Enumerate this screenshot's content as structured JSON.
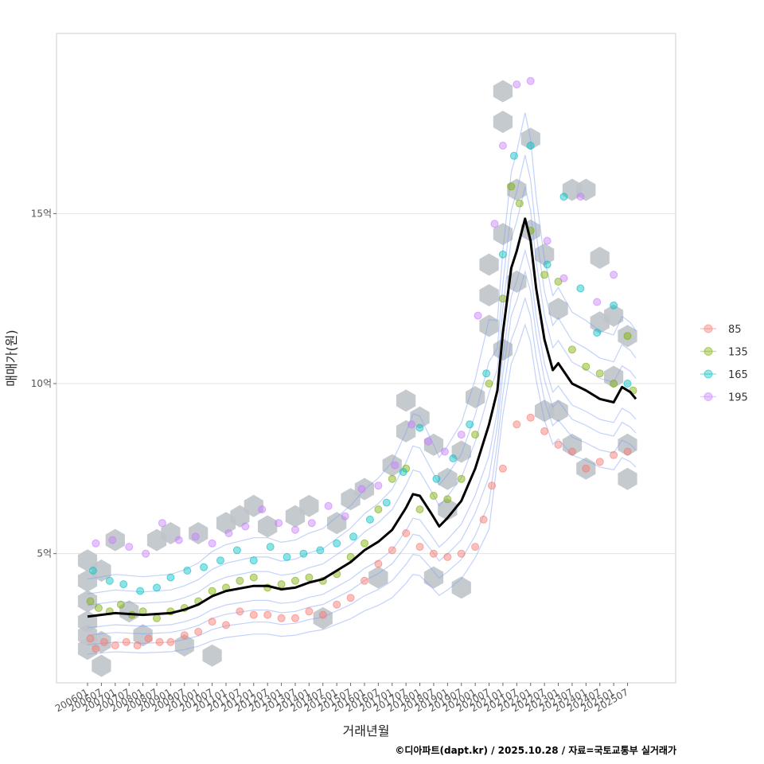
{
  "chart_data": {
    "type": "scatter",
    "xlabel": "거래년월",
    "ylabel": "매매가(원)",
    "caption": "©디아파트(dapt.kr) / 2025.10.28 / 자료=국토교통부 실거래가",
    "x_range": [
      "2006-01",
      "2025-10"
    ],
    "ylim": [
      1.2,
      20.3
    ],
    "y_ticks": [
      5,
      10,
      15
    ],
    "y_tick_labels": [
      "5억",
      "10억",
      "15억"
    ],
    "x_ticks": [
      "200601",
      "200607",
      "200701",
      "200707",
      "200801",
      "200807",
      "200901",
      "200907",
      "201001",
      "201007",
      "201101",
      "201107",
      "201201",
      "201207",
      "201301",
      "201307",
      "201401",
      "201407",
      "201501",
      "201507",
      "201601",
      "201607",
      "201701",
      "201707",
      "201801",
      "201807",
      "201901",
      "201907",
      "202001",
      "202007",
      "202101",
      "202107",
      "202201",
      "202207",
      "202301",
      "202307",
      "202401",
      "202407",
      "202501",
      "202507"
    ],
    "legend": {
      "entries": [
        "85",
        "135",
        "165",
        "195"
      ],
      "colors": [
        "#F8766D",
        "#7CAE00",
        "#00BFC4",
        "#C77CFF"
      ]
    },
    "series": [
      {
        "name": "85",
        "color": "#F8766D",
        "points": [
          [
            2006.1,
            2.5
          ],
          [
            2006.3,
            2.2
          ],
          [
            2006.6,
            2.4
          ],
          [
            2007.0,
            2.3
          ],
          [
            2007.4,
            2.4
          ],
          [
            2007.8,
            2.3
          ],
          [
            2008.2,
            2.5
          ],
          [
            2008.6,
            2.4
          ],
          [
            2009.0,
            2.4
          ],
          [
            2009.5,
            2.6
          ],
          [
            2010.0,
            2.7
          ],
          [
            2010.5,
            3.0
          ],
          [
            2011.0,
            2.9
          ],
          [
            2011.5,
            3.3
          ],
          [
            2012.0,
            3.2
          ],
          [
            2012.5,
            3.2
          ],
          [
            2013.0,
            3.1
          ],
          [
            2013.5,
            3.1
          ],
          [
            2014.0,
            3.3
          ],
          [
            2014.5,
            3.2
          ],
          [
            2015.0,
            3.5
          ],
          [
            2015.5,
            3.7
          ],
          [
            2016.0,
            4.2
          ],
          [
            2016.5,
            4.7
          ],
          [
            2017.0,
            5.1
          ],
          [
            2017.5,
            5.6
          ],
          [
            2018.0,
            5.2
          ],
          [
            2018.5,
            5.0
          ],
          [
            2019.0,
            4.9
          ],
          [
            2019.5,
            5.0
          ],
          [
            2020.0,
            5.2
          ],
          [
            2020.3,
            6.0
          ],
          [
            2020.6,
            7.0
          ],
          [
            2021.0,
            7.5
          ],
          [
            2021.5,
            8.8
          ],
          [
            2022.0,
            9.0
          ],
          [
            2022.5,
            8.6
          ],
          [
            2023.0,
            8.2
          ],
          [
            2023.5,
            8.0
          ],
          [
            2024.0,
            7.5
          ],
          [
            2024.5,
            7.7
          ],
          [
            2025.0,
            7.9
          ],
          [
            2025.5,
            8.0
          ]
        ]
      },
      {
        "name": "135",
        "color": "#7CAE00",
        "points": [
          [
            2006.1,
            3.6
          ],
          [
            2006.4,
            3.4
          ],
          [
            2006.8,
            3.3
          ],
          [
            2007.2,
            3.5
          ],
          [
            2007.6,
            3.2
          ],
          [
            2008.0,
            3.3
          ],
          [
            2008.5,
            3.1
          ],
          [
            2009.0,
            3.3
          ],
          [
            2009.5,
            3.4
          ],
          [
            2010.0,
            3.6
          ],
          [
            2010.5,
            3.9
          ],
          [
            2011.0,
            4.0
          ],
          [
            2011.5,
            4.2
          ],
          [
            2012.0,
            4.3
          ],
          [
            2012.5,
            4.0
          ],
          [
            2013.0,
            4.1
          ],
          [
            2013.5,
            4.2
          ],
          [
            2014.0,
            4.3
          ],
          [
            2014.5,
            4.2
          ],
          [
            2015.0,
            4.4
          ],
          [
            2015.5,
            4.9
          ],
          [
            2016.0,
            5.3
          ],
          [
            2016.5,
            6.3
          ],
          [
            2017.0,
            7.2
          ],
          [
            2017.5,
            7.5
          ],
          [
            2018.0,
            6.3
          ],
          [
            2018.5,
            6.7
          ],
          [
            2019.0,
            6.6
          ],
          [
            2019.5,
            7.2
          ],
          [
            2020.0,
            8.5
          ],
          [
            2020.5,
            10.0
          ],
          [
            2021.0,
            12.5
          ],
          [
            2021.3,
            15.8
          ],
          [
            2021.6,
            15.3
          ],
          [
            2022.0,
            14.5
          ],
          [
            2022.5,
            13.2
          ],
          [
            2023.0,
            13.0
          ],
          [
            2023.5,
            11.0
          ],
          [
            2024.0,
            10.5
          ],
          [
            2024.5,
            10.3
          ],
          [
            2025.0,
            10.0
          ],
          [
            2025.5,
            11.4
          ],
          [
            2025.7,
            9.8
          ]
        ]
      },
      {
        "name": "165",
        "color": "#00BFC4",
        "points": [
          [
            2006.2,
            4.5
          ],
          [
            2006.8,
            4.2
          ],
          [
            2007.3,
            4.1
          ],
          [
            2007.9,
            3.9
          ],
          [
            2008.5,
            4.0
          ],
          [
            2009.0,
            4.3
          ],
          [
            2009.6,
            4.5
          ],
          [
            2010.2,
            4.6
          ],
          [
            2010.8,
            4.8
          ],
          [
            2011.4,
            5.1
          ],
          [
            2012.0,
            4.8
          ],
          [
            2012.6,
            5.2
          ],
          [
            2013.2,
            4.9
          ],
          [
            2013.8,
            5.0
          ],
          [
            2014.4,
            5.1
          ],
          [
            2015.0,
            5.3
          ],
          [
            2015.6,
            5.5
          ],
          [
            2016.2,
            6.0
          ],
          [
            2016.8,
            6.5
          ],
          [
            2017.4,
            7.4
          ],
          [
            2018.0,
            8.7
          ],
          [
            2018.6,
            7.2
          ],
          [
            2019.2,
            7.8
          ],
          [
            2019.8,
            8.8
          ],
          [
            2020.4,
            10.3
          ],
          [
            2021.0,
            13.8
          ],
          [
            2021.4,
            16.7
          ],
          [
            2022.0,
            17.0
          ],
          [
            2022.6,
            13.5
          ],
          [
            2023.2,
            15.5
          ],
          [
            2023.8,
            12.8
          ],
          [
            2024.4,
            11.5
          ],
          [
            2025.0,
            12.3
          ],
          [
            2025.5,
            10.0
          ]
        ]
      },
      {
        "name": "195",
        "color": "#C77CFF",
        "points": [
          [
            2006.3,
            5.3
          ],
          [
            2006.9,
            5.4
          ],
          [
            2007.5,
            5.2
          ],
          [
            2008.1,
            5.0
          ],
          [
            2008.7,
            5.9
          ],
          [
            2009.3,
            5.4
          ],
          [
            2009.9,
            5.5
          ],
          [
            2010.5,
            5.3
          ],
          [
            2011.1,
            5.6
          ],
          [
            2011.7,
            5.8
          ],
          [
            2012.3,
            6.3
          ],
          [
            2012.9,
            5.9
          ],
          [
            2013.5,
            5.7
          ],
          [
            2014.1,
            5.9
          ],
          [
            2014.7,
            6.4
          ],
          [
            2015.3,
            6.1
          ],
          [
            2015.9,
            6.9
          ],
          [
            2016.5,
            7.0
          ],
          [
            2017.1,
            7.6
          ],
          [
            2017.7,
            8.8
          ],
          [
            2018.3,
            8.3
          ],
          [
            2018.9,
            8.0
          ],
          [
            2019.5,
            8.5
          ],
          [
            2020.1,
            12.0
          ],
          [
            2020.7,
            14.7
          ],
          [
            2021.0,
            17.0
          ],
          [
            2021.5,
            18.8
          ],
          [
            2022.0,
            18.9
          ],
          [
            2022.6,
            14.2
          ],
          [
            2023.2,
            13.1
          ],
          [
            2023.8,
            15.5
          ],
          [
            2024.4,
            12.4
          ],
          [
            2025.0,
            13.2
          ]
        ]
      }
    ],
    "median_line": [
      [
        2006.0,
        3.15
      ],
      [
        2007.0,
        3.25
      ],
      [
        2008.0,
        3.2
      ],
      [
        2009.0,
        3.25
      ],
      [
        2009.5,
        3.35
      ],
      [
        2010.0,
        3.5
      ],
      [
        2010.5,
        3.75
      ],
      [
        2011.0,
        3.9
      ],
      [
        2012.0,
        4.05
      ],
      [
        2012.5,
        4.05
      ],
      [
        2013.0,
        3.95
      ],
      [
        2013.5,
        4.0
      ],
      [
        2014.0,
        4.15
      ],
      [
        2014.5,
        4.25
      ],
      [
        2015.0,
        4.5
      ],
      [
        2015.5,
        4.75
      ],
      [
        2016.0,
        5.1
      ],
      [
        2016.5,
        5.35
      ],
      [
        2017.0,
        5.7
      ],
      [
        2017.5,
        6.35
      ],
      [
        2017.75,
        6.75
      ],
      [
        2018.0,
        6.7
      ],
      [
        2018.4,
        6.2
      ],
      [
        2018.7,
        5.8
      ],
      [
        2019.0,
        6.05
      ],
      [
        2019.5,
        6.55
      ],
      [
        2020.0,
        7.5
      ],
      [
        2020.5,
        8.8
      ],
      [
        2020.8,
        9.8
      ],
      [
        2021.0,
        11.5
      ],
      [
        2021.3,
        13.4
      ],
      [
        2021.5,
        13.9
      ],
      [
        2021.8,
        14.85
      ],
      [
        2022.0,
        14.2
      ],
      [
        2022.2,
        12.8
      ],
      [
        2022.5,
        11.3
      ],
      [
        2022.8,
        10.4
      ],
      [
        2023.0,
        10.6
      ],
      [
        2023.5,
        10.0
      ],
      [
        2024.0,
        9.8
      ],
      [
        2024.5,
        9.55
      ],
      [
        2025.0,
        9.45
      ],
      [
        2025.3,
        9.9
      ],
      [
        2025.6,
        9.75
      ],
      [
        2025.8,
        9.55
      ]
    ],
    "hex_bins": [
      [
        2006.0,
        2.2
      ],
      [
        2006.0,
        2.6
      ],
      [
        2006.0,
        3.0
      ],
      [
        2006.0,
        3.6
      ],
      [
        2006.0,
        4.2
      ],
      [
        2006.0,
        4.8
      ],
      [
        2006.5,
        1.7
      ],
      [
        2006.5,
        2.4
      ],
      [
        2006.5,
        4.5
      ],
      [
        2007.0,
        5.4
      ],
      [
        2007.5,
        3.3
      ],
      [
        2008.0,
        2.6
      ],
      [
        2008.5,
        5.4
      ],
      [
        2009.0,
        5.6
      ],
      [
        2009.5,
        2.3
      ],
      [
        2010.0,
        5.6
      ],
      [
        2010.5,
        2.0
      ],
      [
        2011.0,
        5.9
      ],
      [
        2011.5,
        6.1
      ],
      [
        2012.0,
        6.4
      ],
      [
        2012.5,
        5.8
      ],
      [
        2013.5,
        6.1
      ],
      [
        2014.0,
        6.4
      ],
      [
        2014.5,
        3.1
      ],
      [
        2015.0,
        5.9
      ],
      [
        2015.5,
        6.6
      ],
      [
        2016.0,
        6.9
      ],
      [
        2016.5,
        4.3
      ],
      [
        2017.0,
        7.6
      ],
      [
        2017.5,
        9.5
      ],
      [
        2017.5,
        8.6
      ],
      [
        2018.0,
        9.0
      ],
      [
        2018.5,
        8.2
      ],
      [
        2018.5,
        4.3
      ],
      [
        2019.0,
        7.2
      ],
      [
        2019.0,
        6.3
      ],
      [
        2019.5,
        4.0
      ],
      [
        2019.5,
        8.0
      ],
      [
        2020.0,
        9.6
      ],
      [
        2020.5,
        11.7
      ],
      [
        2020.5,
        12.6
      ],
      [
        2020.5,
        13.5
      ],
      [
        2021.0,
        11.0
      ],
      [
        2021.0,
        14.4
      ],
      [
        2021.0,
        17.7
      ],
      [
        2021.0,
        18.6
      ],
      [
        2021.5,
        15.7
      ],
      [
        2021.5,
        13.0
      ],
      [
        2022.0,
        17.2
      ],
      [
        2022.0,
        14.5
      ],
      [
        2022.5,
        13.8
      ],
      [
        2022.5,
        9.2
      ],
      [
        2023.0,
        12.2
      ],
      [
        2023.0,
        9.2
      ],
      [
        2023.5,
        15.7
      ],
      [
        2023.5,
        8.2
      ],
      [
        2024.0,
        15.7
      ],
      [
        2024.0,
        7.5
      ],
      [
        2024.5,
        13.7
      ],
      [
        2024.5,
        11.8
      ],
      [
        2025.0,
        12.0
      ],
      [
        2025.0,
        10.2
      ],
      [
        2025.5,
        11.4
      ],
      [
        2025.5,
        8.2
      ],
      [
        2025.5,
        7.2
      ]
    ]
  }
}
